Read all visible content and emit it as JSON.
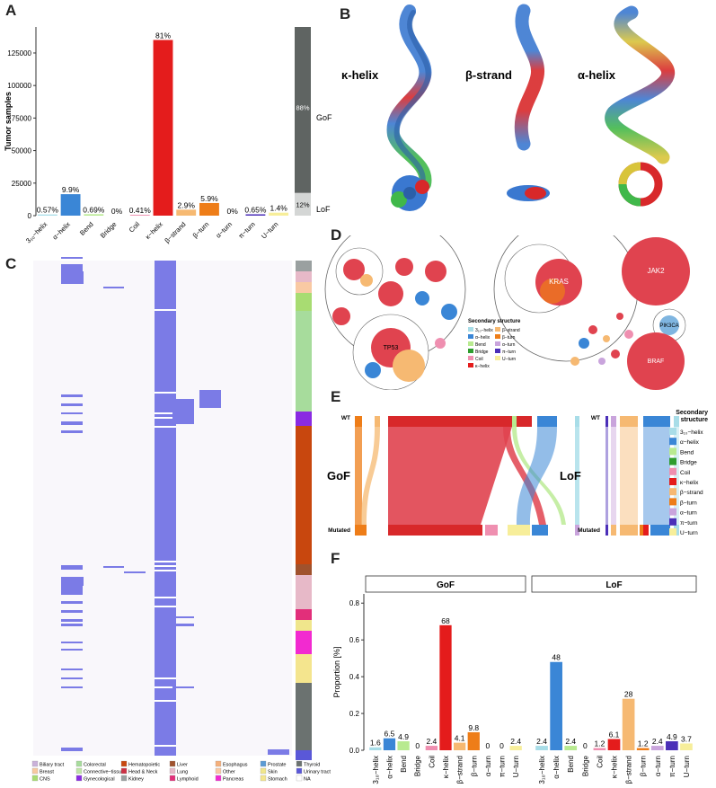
{
  "panels": {
    "a": "A",
    "b": "B",
    "c": "C",
    "d": "D",
    "e": "E",
    "f": "F"
  },
  "chart_a": {
    "type": "bar",
    "ylabel": "Tumor samples",
    "yticks": [
      0,
      25000,
      50000,
      75000,
      100000,
      125000
    ],
    "ylim": [
      0,
      145000
    ],
    "categories": [
      "3₁₀−helix",
      "α−helix",
      "Bend",
      "Bridge",
      "Coil",
      "κ−helix",
      "β−strand",
      "β−turn",
      "α−turn",
      "π−turn",
      "U−turn"
    ],
    "values": [
      900,
      16500,
      1100,
      0,
      650,
      135000,
      4600,
      9700,
      0,
      1050,
      2300
    ],
    "labels": [
      "0.57%",
      "9.9%",
      "0.69%",
      "0%",
      "0.41%",
      "81%",
      "2.9%",
      "5.9%",
      "0%",
      "0.65%",
      "1.4%"
    ],
    "colors": [
      "#a8dde8",
      "#3a86d6",
      "#b8ea90",
      "#2e9d2e",
      "#ef8fb0",
      "#e41c1c",
      "#f6b972",
      "#ee7d18",
      "#c9a4dc",
      "#4b2fb8",
      "#f7ee9a"
    ],
    "side_bar": {
      "gof_label": "GoF",
      "lof_label": "LoF",
      "gof_pct": "88%",
      "lof_pct": "12%",
      "gof_value": 0.88,
      "gof_color": "#5f6462",
      "lof_color": "#d4d6d5"
    }
  },
  "panel_b": {
    "labels": [
      "κ-helix",
      "β-strand",
      "α-helix"
    ]
  },
  "panel_c": {
    "legend": [
      {
        "label": "Biliary tract",
        "color": "#c9b1d9"
      },
      {
        "label": "Breast",
        "color": "#f7c99f"
      },
      {
        "label": "CNS",
        "color": "#a8dc72"
      },
      {
        "label": "Colorectal",
        "color": "#a7dc9c"
      },
      {
        "label": "Connective−tissue",
        "color": "#bfe6a6"
      },
      {
        "label": "Gynecological",
        "color": "#8a2be2"
      },
      {
        "label": "Hematopoietic",
        "color": "#c8470e"
      },
      {
        "label": "Head & Neck",
        "color": "#cc3044"
      },
      {
        "label": "Kidney",
        "color": "#9aa0a0"
      },
      {
        "label": "Liver",
        "color": "#a0522d"
      },
      {
        "label": "Lung",
        "color": "#e7b9c8"
      },
      {
        "label": "Lymphoid",
        "color": "#e22f7a"
      },
      {
        "label": "Esophagus",
        "color": "#f5b07b"
      },
      {
        "label": "Other",
        "color": "#f9c9a3"
      },
      {
        "label": "Pancreas",
        "color": "#f22ad0"
      },
      {
        "label": "Prostate",
        "color": "#5b9bd5"
      },
      {
        "label": "Skin",
        "color": "#f0e68c"
      },
      {
        "label": "Stomach",
        "color": "#f4e58e"
      },
      {
        "label": "Thyroid",
        "color": "#6b7270"
      },
      {
        "label": "Urinary tract",
        "color": "#5a58d8"
      },
      {
        "label": "NA",
        "color": "#ffffff"
      }
    ]
  },
  "panel_d": {
    "genes": [
      "TP53",
      "KRAS",
      "JAK2",
      "PIK3CA",
      "BRAF"
    ],
    "legend_title": "Secondary structure",
    "legend": [
      {
        "label": "3₁₀−helix",
        "color": "#a8dde8"
      },
      {
        "label": "β−strand",
        "color": "#f6b972"
      },
      {
        "label": "α−helix",
        "color": "#3a86d6"
      },
      {
        "label": "β−turn",
        "color": "#ee7d18"
      },
      {
        "label": "Bend",
        "color": "#b8ea90"
      },
      {
        "label": "α−turn",
        "color": "#c9a4dc"
      },
      {
        "label": "Bridge",
        "color": "#2e9d2e"
      },
      {
        "label": "π−turn",
        "color": "#4b2fb8"
      },
      {
        "label": "Coil",
        "color": "#ef8fb0"
      },
      {
        "label": "U−turn",
        "color": "#f7ee9a"
      },
      {
        "label": "κ−helix",
        "color": "#e41c1c"
      }
    ]
  },
  "panel_e": {
    "gof": "GoF",
    "lof": "LoF",
    "wt": "WT",
    "mutated": "Mutated",
    "legend_title": "Secondary structure",
    "legend": [
      {
        "label": "3₁₀−helix",
        "color": "#a8dde8"
      },
      {
        "label": "α−helix",
        "color": "#3a86d6"
      },
      {
        "label": "Bend",
        "color": "#b8ea90"
      },
      {
        "label": "Bridge",
        "color": "#2e9d2e"
      },
      {
        "label": "Coil",
        "color": "#ef8fb0"
      },
      {
        "label": "κ−helix",
        "color": "#e41c1c"
      },
      {
        "label": "β−strand",
        "color": "#f6b972"
      },
      {
        "label": "β−turn",
        "color": "#ee7d18"
      },
      {
        "label": "α−turn",
        "color": "#c9a4dc"
      },
      {
        "label": "π−turn",
        "color": "#4b2fb8"
      },
      {
        "label": "U−turn",
        "color": "#f7ee9a"
      }
    ]
  },
  "chart_f": {
    "type": "bar",
    "ylabel": "Proportion [%]",
    "yticks": [
      0.0,
      0.2,
      0.4,
      0.6,
      0.8
    ],
    "ylim": [
      0,
      0.85
    ],
    "categories": [
      "3₁₀−helix",
      "α−helix",
      "Bend",
      "Bridge",
      "Coil",
      "κ−helix",
      "β−strand",
      "β−turn",
      "α−turn",
      "π−turn",
      "U−turn"
    ],
    "colors": [
      "#a8dde8",
      "#3a86d6",
      "#b8ea90",
      "#2e9d2e",
      "#ef8fb0",
      "#e41c1c",
      "#f6b972",
      "#ee7d18",
      "#c9a4dc",
      "#4b2fb8",
      "#f7ee9a"
    ],
    "facets": [
      {
        "name": "GoF",
        "values": [
          0.016,
          0.065,
          0.049,
          0,
          0.024,
          0.68,
          0.041,
          0.098,
          0,
          0,
          0.024
        ],
        "labels": [
          "1.6",
          "6.5",
          "4.9",
          "0",
          "2.4",
          "68",
          "4.1",
          "9.8",
          "0",
          "0",
          "2.4"
        ]
      },
      {
        "name": "LoF",
        "values": [
          0.024,
          0.48,
          0.024,
          0,
          0.012,
          0.061,
          0.28,
          0.012,
          0.024,
          0.049,
          0.037
        ],
        "labels": [
          "2.4",
          "48",
          "2.4",
          "0",
          "1.2",
          "6.1",
          "28",
          "1.2",
          "2.4",
          "4.9",
          "3.7"
        ]
      }
    ]
  }
}
